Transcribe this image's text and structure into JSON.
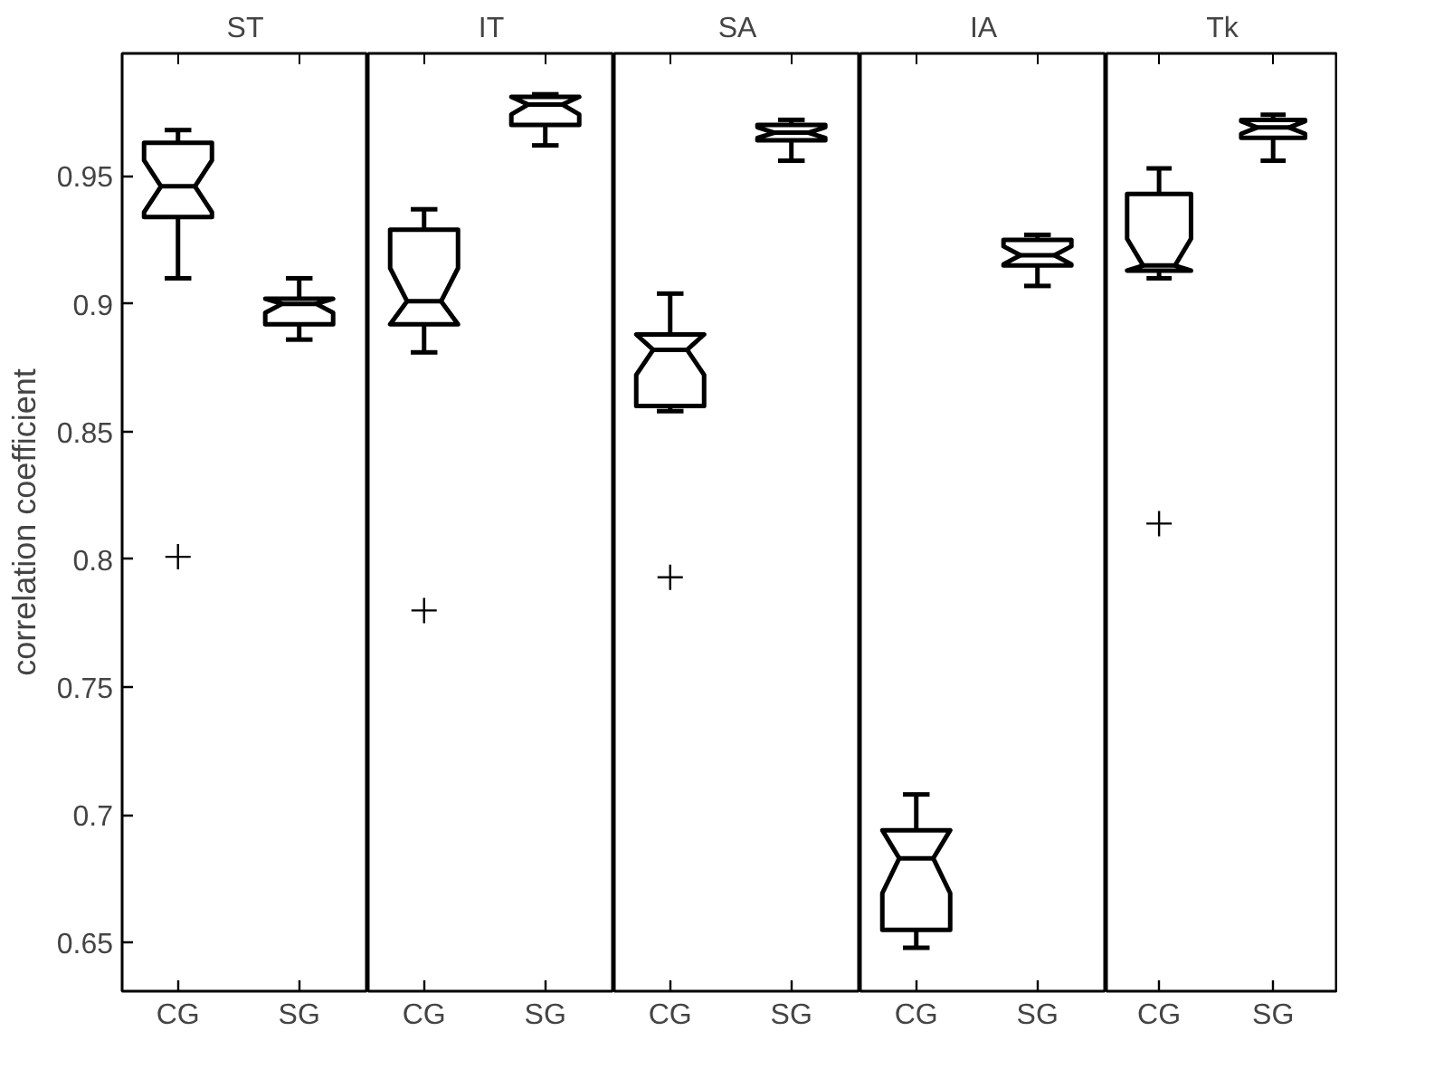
{
  "chart_data": [
    {
      "type": "box",
      "title": "ST",
      "ylabel": "correlation coefficient",
      "categories": [
        "CG",
        "SG"
      ],
      "ylim": [
        0.631,
        0.998
      ],
      "yticks": [
        0.65,
        0.7,
        0.75,
        0.8,
        0.85,
        0.9,
        0.95
      ],
      "grid": false,
      "marker": "cross",
      "series": [
        {
          "color": "#000000",
          "boxes": [
            {
              "low": 0.91,
              "q1": 0.934,
              "median": 0.946,
              "q3": 0.963,
              "high": 0.968,
              "outliers": [
                0.801
              ]
            },
            {
              "low": 0.886,
              "q1": 0.892,
              "median": 0.9,
              "q3": 0.902,
              "high": 0.91
            }
          ]
        }
      ]
    },
    {
      "type": "box",
      "title": "IT",
      "categories": [
        "CG",
        "SG"
      ],
      "ylim": [
        0.631,
        0.998
      ],
      "yticks": [
        0.65,
        0.7,
        0.75,
        0.8,
        0.85,
        0.9,
        0.95
      ],
      "tick_labels": "x",
      "grid": false,
      "marker": "cross",
      "series": [
        {
          "color": "#000000",
          "boxes": [
            {
              "low": 0.881,
              "q1": 0.892,
              "median": 0.901,
              "q3": 0.929,
              "high": 0.937,
              "outliers": [
                0.78
              ]
            },
            {
              "low": 0.962,
              "q1": 0.97,
              "median": 0.978,
              "q3": 0.981,
              "high": 0.982
            }
          ]
        }
      ]
    },
    {
      "type": "box",
      "title": "SA",
      "categories": [
        "CG",
        "SG"
      ],
      "ylim": [
        0.631,
        0.998
      ],
      "yticks": [
        0.65,
        0.7,
        0.75,
        0.8,
        0.85,
        0.9,
        0.95
      ],
      "tick_labels": "x",
      "grid": false,
      "marker": "cross",
      "series": [
        {
          "color": "#000000",
          "boxes": [
            {
              "low": 0.858,
              "q1": 0.86,
              "median": 0.882,
              "q3": 0.888,
              "high": 0.904,
              "outliers": [
                0.793
              ]
            },
            {
              "low": 0.956,
              "q1": 0.964,
              "median": 0.967,
              "q3": 0.97,
              "high": 0.972
            }
          ]
        }
      ]
    },
    {
      "type": "box",
      "title": "IA",
      "categories": [
        "CG",
        "SG"
      ],
      "ylim": [
        0.631,
        0.998
      ],
      "yticks": [
        0.65,
        0.7,
        0.75,
        0.8,
        0.85,
        0.9,
        0.95
      ],
      "tick_labels": "x",
      "grid": false,
      "marker": "cross",
      "series": [
        {
          "color": "#000000",
          "boxes": [
            {
              "low": 0.648,
              "q1": 0.655,
              "median": 0.683,
              "q3": 0.694,
              "high": 0.708
            },
            {
              "low": 0.907,
              "q1": 0.915,
              "median": 0.919,
              "q3": 0.925,
              "high": 0.927
            }
          ]
        }
      ]
    },
    {
      "type": "box",
      "title": "Tk",
      "categories": [
        "CG",
        "SG"
      ],
      "ylim": [
        0.631,
        0.998
      ],
      "yticks": [
        0.65,
        0.7,
        0.75,
        0.8,
        0.85,
        0.9,
        0.95
      ],
      "tick_labels": "x",
      "grid": false,
      "marker": "cross",
      "series": [
        {
          "color": "#000000",
          "boxes": [
            {
              "low": 0.91,
              "q1": 0.913,
              "median": 0.915,
              "q3": 0.943,
              "high": 0.953,
              "outliers": [
                0.814
              ]
            },
            {
              "low": 0.956,
              "q1": 0.965,
              "median": 0.969,
              "q3": 0.972,
              "high": 0.974
            }
          ]
        }
      ]
    }
  ]
}
